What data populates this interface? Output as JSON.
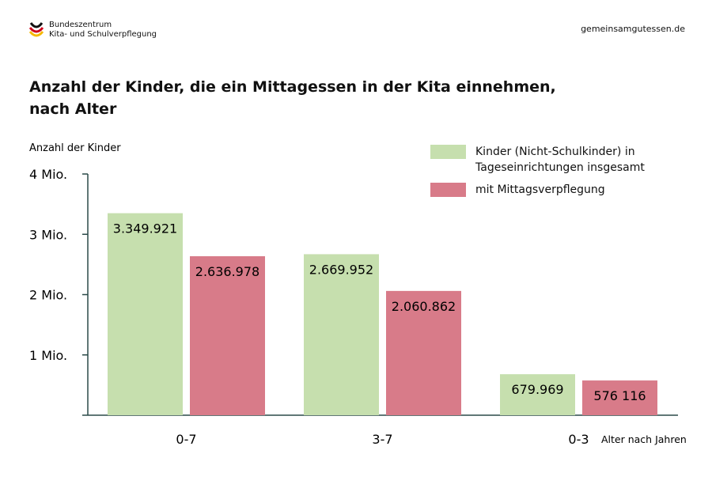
{
  "header": {
    "org_line1": "Bundeszentrum",
    "org_line2": "Kita- und Schulverpflegung",
    "site": "gemeinsamgutessen.de"
  },
  "chart_data": {
    "type": "bar",
    "title": "Anzahl der Kinder, die ein Mittagessen in der Kita einnehmen, nach Alter",
    "ylabel": "Anzahl der Kinder",
    "xlabel": "Alter nach Jahren",
    "ylim": [
      0,
      4000000
    ],
    "yticks": [
      {
        "value": 1000000,
        "label": "1 Mio."
      },
      {
        "value": 2000000,
        "label": "2 Mio."
      },
      {
        "value": 3000000,
        "label": "3 Mio."
      },
      {
        "value": 4000000,
        "label": "4 Mio."
      }
    ],
    "categories": [
      "0-7",
      "3-7",
      "0-3"
    ],
    "series": [
      {
        "name": "Kinder (Nicht-Schulkinder) in Tageseinrichtungen insgesamt",
        "color": "#c6dfae",
        "values": [
          3349921,
          2669952,
          679969
        ],
        "labels": [
          "3.349.921",
          "2.669.952",
          "679.969"
        ]
      },
      {
        "name": "mit Mittagsverpflegung",
        "color": "#d87b89",
        "values": [
          2636978,
          2060862,
          576116
        ],
        "labels": [
          "2.636.978",
          "2.060.862",
          "576 116"
        ]
      }
    ],
    "legend": "top-right",
    "grid": false
  }
}
